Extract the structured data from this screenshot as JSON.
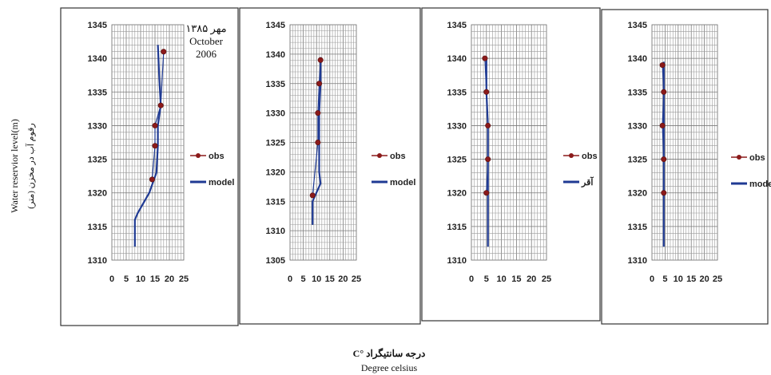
{
  "figure": {
    "ylabel_en": "Water reservior level(m)",
    "ylabel_fa": "رقوم آب در مخزن (متر)",
    "xlabel_fa": "درجه سانتیگراد °C",
    "xlabel_en": "Degree celsius"
  },
  "colors": {
    "obs": "#8b1a1a",
    "model": "#1f3a93",
    "grid": "#9a9a9a"
  },
  "chart_data": [
    {
      "type": "line",
      "annotation": [
        "مهر ۱۳۸۵",
        "October",
        "2006"
      ],
      "xlim": [
        0,
        25
      ],
      "xticks": [
        0,
        5,
        10,
        15,
        20,
        25
      ],
      "ylim": [
        1310,
        1345
      ],
      "yticks": [
        1310,
        1315,
        1320,
        1325,
        1330,
        1335,
        1340,
        1345
      ],
      "legend": [
        "obs",
        "model"
      ],
      "legend_position": "right",
      "series": [
        {
          "name": "obs",
          "points": [
            [
              18,
              1341
            ],
            [
              17,
              1333
            ],
            [
              15,
              1330
            ],
            [
              15,
              1327
            ],
            [
              14,
              1322
            ]
          ]
        },
        {
          "name": "model",
          "points": [
            [
              16,
              1342
            ],
            [
              16.5,
              1337
            ],
            [
              17,
              1333
            ],
            [
              16,
              1330
            ],
            [
              16,
              1327
            ],
            [
              15.5,
              1323
            ],
            [
              13,
              1320
            ],
            [
              9,
              1317
            ],
            [
              8,
              1316
            ],
            [
              8,
              1312
            ]
          ]
        }
      ]
    },
    {
      "type": "line",
      "annotation": [],
      "xlim": [
        0,
        25
      ],
      "xticks": [
        0,
        5,
        10,
        15,
        20,
        25
      ],
      "ylim": [
        1305,
        1345
      ],
      "yticks": [
        1305,
        1310,
        1315,
        1320,
        1325,
        1330,
        1335,
        1340,
        1345
      ],
      "legend": [
        "obs",
        "model"
      ],
      "legend_position": "right",
      "series": [
        {
          "name": "obs",
          "points": [
            [
              11.5,
              1339
            ],
            [
              11,
              1335
            ],
            [
              10.5,
              1330
            ],
            [
              10.5,
              1325
            ],
            [
              8.5,
              1316
            ]
          ]
        },
        {
          "name": "model",
          "points": [
            [
              11.5,
              1339.5
            ],
            [
              11.5,
              1335
            ],
            [
              11,
              1330
            ],
            [
              11,
              1325
            ],
            [
              11,
              1320
            ],
            [
              11.5,
              1318
            ],
            [
              9.5,
              1316
            ],
            [
              8.5,
              1315
            ],
            [
              8.5,
              1311
            ]
          ]
        }
      ]
    },
    {
      "type": "line",
      "annotation": [],
      "xlim": [
        0,
        25
      ],
      "xticks": [
        0,
        5,
        10,
        15,
        20,
        25
      ],
      "ylim": [
        1310,
        1345
      ],
      "yticks": [
        1310,
        1315,
        1320,
        1325,
        1330,
        1335,
        1340,
        1345
      ],
      "legend": [
        "obs",
        "آقر"
      ],
      "legend_position": "right",
      "series": [
        {
          "name": "obs",
          "points": [
            [
              4.5,
              1340
            ],
            [
              5,
              1335
            ],
            [
              5.5,
              1330
            ],
            [
              5.5,
              1325
            ],
            [
              5,
              1320
            ]
          ]
        },
        {
          "name": "آقر",
          "points": [
            [
              5,
              1340
            ],
            [
              5,
              1335
            ],
            [
              5.5,
              1330
            ],
            [
              5.5,
              1325
            ],
            [
              5.5,
              1320
            ],
            [
              5.5,
              1312
            ]
          ]
        }
      ]
    },
    {
      "type": "line",
      "annotation": [],
      "xlim": [
        0,
        25
      ],
      "xticks": [
        0,
        5,
        10,
        15,
        20,
        25
      ],
      "ylim": [
        1310,
        1345
      ],
      "yticks": [
        1310,
        1315,
        1320,
        1325,
        1330,
        1335,
        1340,
        1345
      ],
      "legend": [
        "obs",
        "model"
      ],
      "legend_position": "right",
      "series": [
        {
          "name": "obs",
          "points": [
            [
              4,
              1339
            ],
            [
              4.5,
              1335
            ],
            [
              4,
              1330
            ],
            [
              4.5,
              1325
            ],
            [
              4.5,
              1320
            ]
          ]
        },
        {
          "name": "model",
          "points": [
            [
              4.5,
              1339.5
            ],
            [
              4.5,
              1335
            ],
            [
              4.5,
              1330
            ],
            [
              4.5,
              1325
            ],
            [
              4.5,
              1320
            ],
            [
              4.5,
              1312
            ]
          ]
        }
      ]
    }
  ]
}
